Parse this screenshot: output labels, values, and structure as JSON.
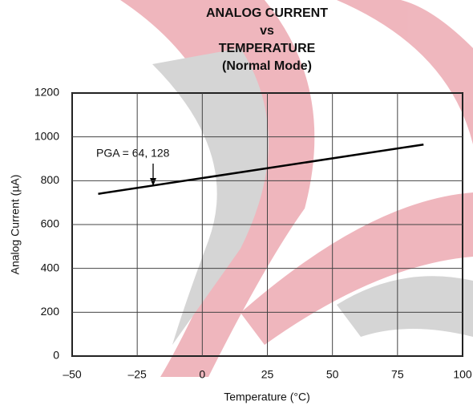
{
  "chart_data": {
    "type": "line",
    "title": [
      "ANALOG CURRENT",
      "vs",
      "TEMPERATURE",
      "(Normal Mode)"
    ],
    "x_label": "Temperature (°C)",
    "y_label": "Analog Current (µA)",
    "annotation": "PGA = 64, 128",
    "x": [
      -40,
      85
    ],
    "series": [
      {
        "color": "#000000",
        "values": [
          740,
          965
        ]
      }
    ],
    "xlim": [
      -50,
      100
    ],
    "xticks": [
      {
        "value": -50,
        "label": "–50"
      },
      {
        "value": -25,
        "label": "–25"
      },
      0,
      25,
      50,
      75,
      100
    ],
    "ylim": [
      0,
      1200
    ],
    "yticks": [
      0,
      200,
      400,
      600,
      800,
      1000,
      1200
    ],
    "grid": true
  }
}
